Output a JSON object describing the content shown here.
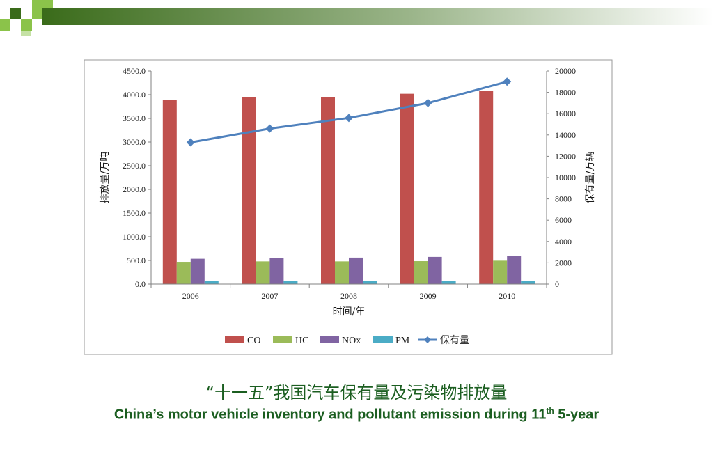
{
  "colors": {
    "accent_dark": "#3a6b1a",
    "accent_green": "#8bc34a",
    "caption": "#1b5e20",
    "CO": "#c0504d",
    "HC": "#9bbb59",
    "NOx": "#8064a2",
    "PM": "#4bacc6",
    "line": "#4f81bd"
  },
  "caption": {
    "chinese": "“十一五”我国汽车保有量及污染物排放量",
    "english_main": "China’s motor vehicle inventory and pollutant emission during 11",
    "english_sup": "th",
    "english_tail": " 5-year"
  },
  "chart_data": {
    "type": "bar",
    "categories": [
      "2006",
      "2007",
      "2008",
      "2009",
      "2010"
    ],
    "xlabel": "时间/年",
    "ylabel": "排放量/万吨",
    "y2label": "保有量/万辆",
    "ylim": [
      0,
      4500
    ],
    "y2lim": [
      0,
      20000
    ],
    "yticks": [
      "0.0",
      "500.0",
      "1000.0",
      "1500.0",
      "2000.0",
      "2500.0",
      "3000.0",
      "3500.0",
      "4000.0",
      "4500.0"
    ],
    "y2ticks": [
      "0",
      "2000",
      "4000",
      "6000",
      "8000",
      "10000",
      "12000",
      "14000",
      "16000",
      "18000",
      "20000"
    ],
    "series": [
      {
        "name": "CO",
        "kind": "bar",
        "values": [
          3890,
          3950,
          3955,
          4020,
          4080
        ]
      },
      {
        "name": "HC",
        "kind": "bar",
        "values": [
          470,
          480,
          480,
          485,
          495
        ]
      },
      {
        "name": "NOx",
        "kind": "bar",
        "values": [
          535,
          550,
          560,
          575,
          600
        ]
      },
      {
        "name": "PM",
        "kind": "bar",
        "values": [
          62,
          62,
          63,
          63,
          63
        ]
      },
      {
        "name": "保有量",
        "kind": "line",
        "axis": "right",
        "values": [
          13300,
          14600,
          15600,
          17000,
          19000
        ]
      }
    ],
    "legend_position": "bottom",
    "grid": false
  }
}
